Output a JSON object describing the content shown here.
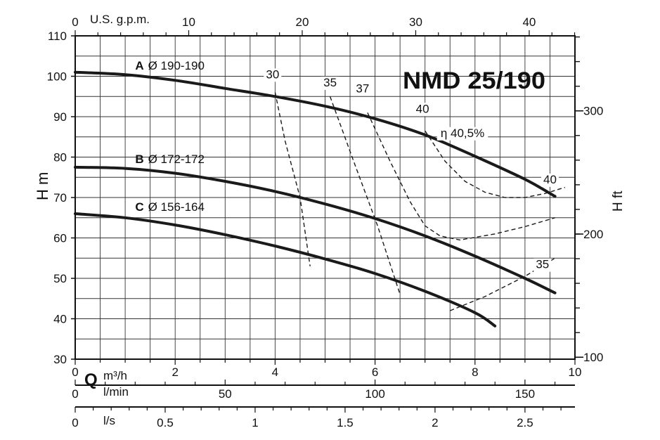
{
  "chart_data": {
    "type": "line",
    "title": "NMD 25/190",
    "ylabel": "H m",
    "yrightlabel": "H ft",
    "xlabel": "Q",
    "xunit": "m³/h",
    "gpm_label": "U.S. g.p.m.",
    "lmin_label": "l/min",
    "ls_label": "l/s",
    "xlim": [
      0,
      10
    ],
    "ylim": [
      30,
      110
    ],
    "x_ticks": [
      "0",
      "2",
      "4",
      "6",
      "8",
      "10"
    ],
    "y_ticks": [
      "30",
      "40",
      "50",
      "60",
      "70",
      "80",
      "90",
      "100",
      "110"
    ],
    "ft_ticks": [
      {
        "v": 100,
        "label": "100"
      },
      {
        "v": 200,
        "label": "200"
      },
      {
        "v": 300,
        "label": "300"
      }
    ],
    "gpm_ticks": [
      {
        "v": 0,
        "label": "0"
      },
      {
        "v": 10,
        "label": "10"
      },
      {
        "v": 20,
        "label": "20"
      },
      {
        "v": 30,
        "label": "30"
      },
      {
        "v": 40,
        "label": "40"
      }
    ],
    "lmin_ticks": [
      {
        "v": 0,
        "label": "0"
      },
      {
        "v": 50,
        "label": "50"
      },
      {
        "v": 100,
        "label": "100"
      },
      {
        "v": 150,
        "label": "150"
      }
    ],
    "ls_ticks": [
      {
        "v": 0,
        "label": "0"
      },
      {
        "v": 0.5,
        "label": "0.5"
      },
      {
        "v": 1,
        "label": "1"
      },
      {
        "v": 1.5,
        "label": "1.5"
      },
      {
        "v": 2,
        "label": "2"
      },
      {
        "v": 2.5,
        "label": "2.5"
      }
    ],
    "series": [
      {
        "letter": "A",
        "name": "Ø 190-190",
        "x": [
          0,
          1,
          2,
          3,
          4,
          5,
          6,
          7,
          8,
          9,
          9.6
        ],
        "y": [
          101,
          100.4,
          99,
          97,
          95,
          92.6,
          89.5,
          85.5,
          80.2,
          74.5,
          70.3
        ]
      },
      {
        "letter": "B",
        "name": "Ø 172-172",
        "x": [
          0,
          1,
          2,
          3,
          4,
          5,
          6,
          7,
          8,
          9,
          9.6
        ],
        "y": [
          77.5,
          77.2,
          76,
          74,
          71.5,
          68.4,
          64.8,
          60.5,
          55.5,
          50,
          46.4
        ]
      },
      {
        "letter": "C",
        "name": "Ø 156-164",
        "x": [
          0,
          1,
          2,
          3,
          4,
          5,
          6,
          7,
          8,
          8.4
        ],
        "y": [
          66,
          65,
          63.2,
          60.8,
          58,
          54.8,
          51.2,
          46.8,
          41.5,
          38.2
        ]
      }
    ],
    "efficiency_lines": [
      {
        "label": "30",
        "x": [
          4.0,
          4.2,
          4.5,
          4.7
        ],
        "y": [
          96,
          84,
          70,
          53
        ]
      },
      {
        "label": "35",
        "x": [
          5.1,
          5.6,
          6.05,
          6.5
        ],
        "y": [
          95,
          78,
          63,
          46
        ]
      },
      {
        "label": "37",
        "x": [
          5.85,
          6.3,
          6.7,
          7.0,
          7.3,
          7.7,
          8.4,
          9.0,
          9.6
        ],
        "y": [
          91,
          79,
          69,
          63,
          60.5,
          59.5,
          61,
          62.8,
          65
        ]
      },
      {
        "label": "40",
        "x": [
          7.0,
          7.4,
          7.8,
          8.2,
          8.6,
          9.0,
          9.4,
          9.8
        ],
        "y": [
          86.5,
          79,
          74,
          71.3,
          70,
          70,
          71,
          72.5
        ]
      },
      {
        "label": "35",
        "x": [
          7.5,
          8.2,
          9.0,
          9.6
        ],
        "y": [
          42,
          45.5,
          50.5,
          55
        ]
      }
    ],
    "efficiency_annotations": [
      {
        "text": "30",
        "x": 3.95,
        "y": 99.5
      },
      {
        "text": "35",
        "x": 5.1,
        "y": 97.5
      },
      {
        "text": "37",
        "x": 5.75,
        "y": 96
      },
      {
        "text": "40",
        "x": 6.95,
        "y": 91
      },
      {
        "text": "η 40,5%",
        "x": 7.75,
        "y": 85
      },
      {
        "text": "40",
        "x": 9.5,
        "y": 73.5
      },
      {
        "text": "35",
        "x": 9.35,
        "y": 52.5
      }
    ]
  }
}
